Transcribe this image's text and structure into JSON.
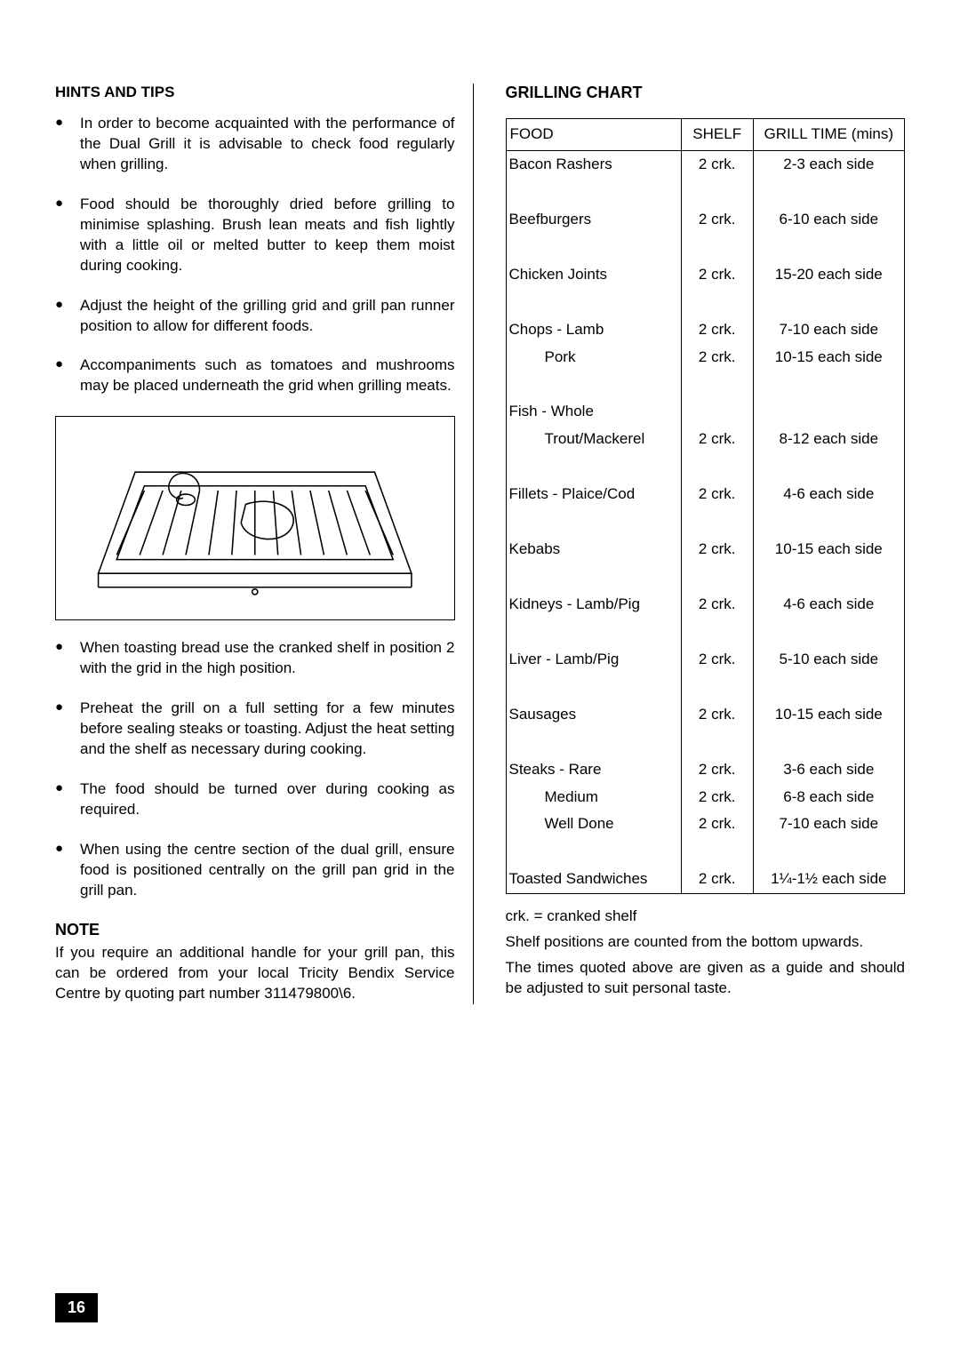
{
  "left": {
    "hints_heading": "HINTS AND TIPS",
    "tips_a": [
      "In order to become acquainted with the performance of the Dual Grill it is advisable to check food regularly when grilling.",
      "Food should be thoroughly dried before grilling to minimise splashing. Brush lean meats and fish lightly with a little oil or melted butter to keep them moist during cooking.",
      "Adjust the height of the grilling grid and grill pan runner position to allow for different foods.",
      "Accompaniments such as tomatoes and mushrooms may be placed underneath the grid when grilling meats."
    ],
    "tips_b": [
      "When toasting bread use the cranked shelf in position 2 with the grid in the high position.",
      "Preheat the grill on a full setting for a few minutes before sealing steaks or toasting. Adjust the heat setting and the shelf as necessary during cooking.",
      "The food should be turned over during cooking as required.",
      "When using the centre section of the dual grill, ensure food is positioned centrally on the grill pan grid in the grill pan."
    ],
    "note_heading": "NOTE",
    "note_body": "If you require an additional handle for your grill pan, this can be ordered from your local Tricity Bendix Service Centre by quoting part number 311479800\\6."
  },
  "right": {
    "chart_heading": "GRILLING CHART",
    "headers": {
      "food": "FOOD",
      "shelf": "SHELF",
      "time": "GRILL TIME (mins)"
    },
    "rows": [
      {
        "food": "Bacon  Rashers",
        "shelf": "2 crk.",
        "time": "2-3 each side",
        "blank_after": true
      },
      {
        "food": "Beefburgers",
        "shelf": "2 crk.",
        "time": "6-10 each side",
        "blank_after": true
      },
      {
        "food": "Chicken Joints",
        "shelf": "2 crk.",
        "time": "15-20 each side",
        "blank_after": true
      },
      {
        "food": "Chops - Lamb",
        "shelf": "2 crk.",
        "time": "7-10 each side"
      },
      {
        "food_sub": "Pork",
        "shelf": "2 crk.",
        "time": "10-15 each side",
        "blank_after": true
      },
      {
        "food": "Fish - Whole",
        "shelf": "",
        "time": ""
      },
      {
        "food_sub": "Trout/Mackerel",
        "shelf": "2 crk.",
        "time": "8-12 each side",
        "blank_after": true
      },
      {
        "food": "Fillets - Plaice/Cod",
        "shelf": "2 crk.",
        "time": "4-6 each side",
        "blank_after": true
      },
      {
        "food": "Kebabs",
        "shelf": "2 crk.",
        "time": "10-15 each side",
        "blank_after": true
      },
      {
        "food": "Kidneys - Lamb/Pig",
        "shelf": "2 crk.",
        "time": "4-6 each side",
        "blank_after": true
      },
      {
        "food": "Liver - Lamb/Pig",
        "shelf": "2 crk.",
        "time": "5-10 each side",
        "blank_after": true
      },
      {
        "food": "Sausages",
        "shelf": "2 crk.",
        "time": "10-15 each side",
        "blank_after": true
      },
      {
        "food": "Steaks - Rare",
        "shelf": "2 crk.",
        "time": "3-6 each side"
      },
      {
        "food_sub": "Medium",
        "shelf": "2 crk.",
        "time": "6-8 each side"
      },
      {
        "food_sub": "Well Done",
        "shelf": "2 crk.",
        "time": "7-10 each side",
        "blank_after": true
      },
      {
        "food": "Toasted Sandwiches",
        "shelf": "2 crk.",
        "time": "1¼-1½ each side"
      }
    ],
    "footnotes": [
      "crk. = cranked shelf",
      "Shelf positions are counted from the bottom upwards.",
      "The times quoted above are given as a guide and should be adjusted to suit personal taste."
    ]
  },
  "page_number": "16",
  "colors": {
    "text": "#000000",
    "background": "#ffffff",
    "page_badge_bg": "#000000",
    "page_badge_fg": "#ffffff"
  }
}
